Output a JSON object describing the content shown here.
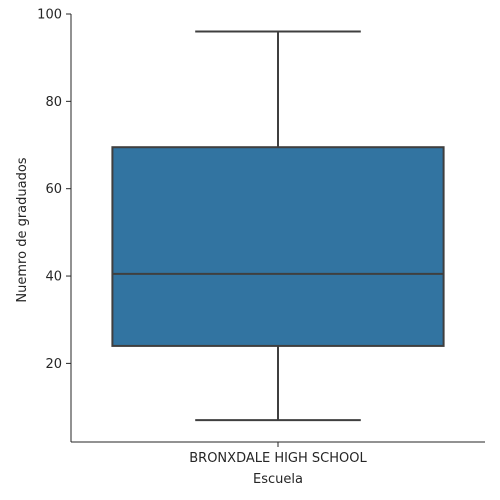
{
  "chart_data": {
    "type": "box",
    "xlabel": "Escuela",
    "ylabel": "Nuemro de graduados",
    "categories": [
      "BRONXDALE HIGH SCHOOL"
    ],
    "boxes": [
      {
        "category": "BRONXDALE HIGH SCHOOL",
        "whisker_low": 7,
        "q1": 24,
        "median": 40.5,
        "q3": 69.5,
        "whisker_high": 96
      }
    ],
    "y_ticks": [
      20,
      40,
      60,
      80,
      100
    ],
    "ylim": [
      2,
      100
    ],
    "grid": false,
    "box_color": "#3274a1",
    "line_color": "#3f3f3f"
  }
}
